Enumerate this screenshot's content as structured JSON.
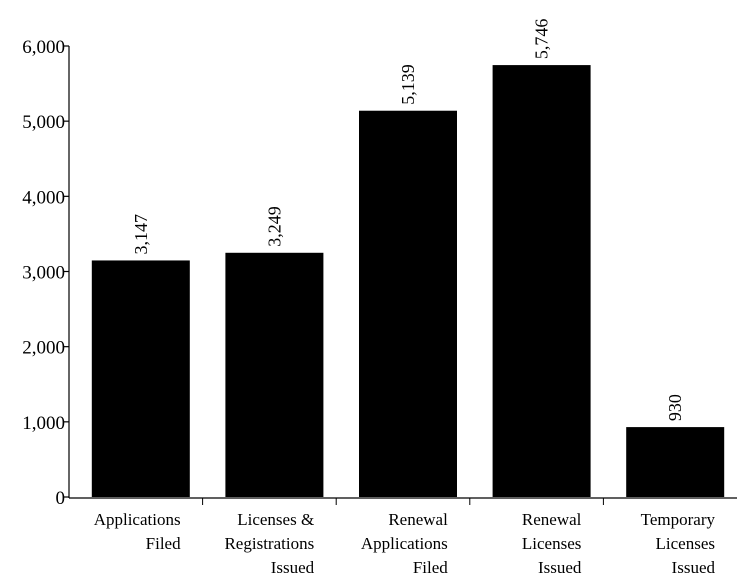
{
  "chart_data": {
    "type": "bar",
    "categories": [
      [
        "Applications",
        "Filed"
      ],
      [
        "Licenses &",
        "Registrations",
        "Issued"
      ],
      [
        "Renewal",
        "Applications",
        "Filed"
      ],
      [
        "Renewal",
        "Licenses",
        "Issued"
      ],
      [
        "Temporary",
        "Licenses",
        "Issued"
      ]
    ],
    "values": [
      3147,
      3249,
      5139,
      5746,
      930
    ],
    "data_labels": [
      "3,147",
      "3,249",
      "5,139",
      "5,746",
      "930"
    ],
    "ylim": [
      0,
      6000
    ],
    "yticks": [
      0,
      1000,
      2000,
      3000,
      4000,
      5000,
      6000
    ],
    "ytick_labels": [
      "0",
      "1,000",
      "2,000",
      "3,000",
      "4,000",
      "5,000",
      "6,000"
    ],
    "title": "",
    "xlabel": "",
    "ylabel": "",
    "grid": false,
    "bar_color": "#000000"
  }
}
